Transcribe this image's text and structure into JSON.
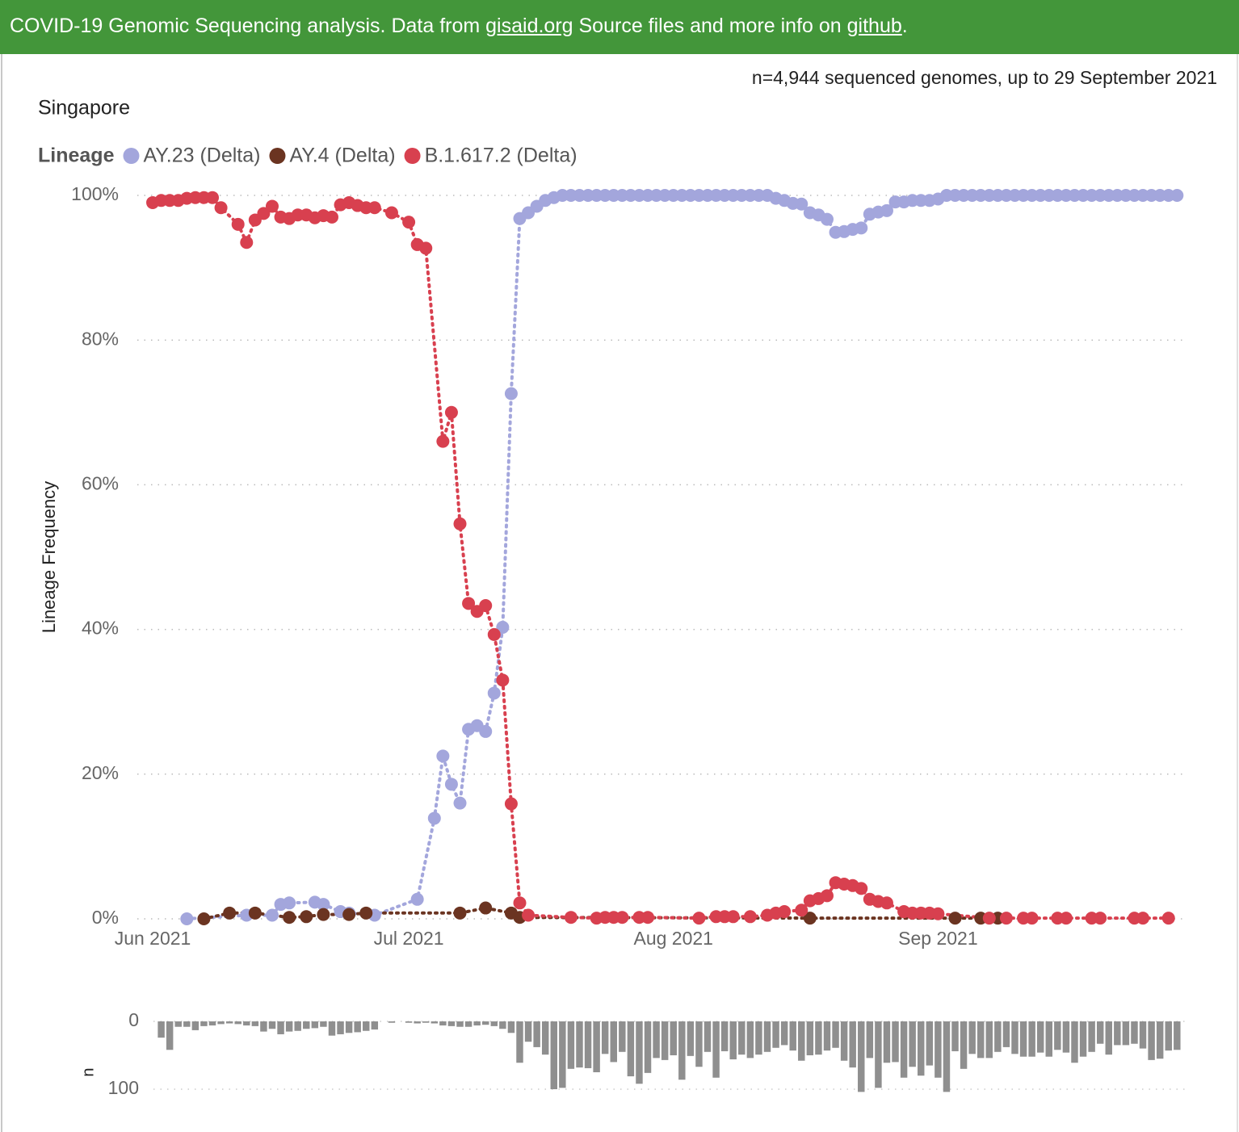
{
  "header": {
    "lead": "COVID-19 Genomic Sequencing analysis. Data from ",
    "link_data": "gisaid.org",
    "middle": " Source files and more info on ",
    "link_source": "github",
    "tail": "."
  },
  "summary": "n=4,944 sequenced genomes, up to 29 September 2021",
  "chart_data": [
    {
      "type": "line",
      "title": "Singapore",
      "legend_title": "Lineage",
      "y_label": "Lineage Frequency",
      "xlim": [
        -1.8,
        121.2
      ],
      "xticks": [
        {
          "value": 0,
          "label": "Jun 2021"
        },
        {
          "value": 30,
          "label": "Jul 2021"
        },
        {
          "value": 61,
          "label": "Aug 2021"
        },
        {
          "value": 92,
          "label": "Sep 2021"
        }
      ],
      "ylim": [
        0,
        100
      ],
      "yticks": [
        {
          "value": 0,
          "label": "0%"
        },
        {
          "value": 20,
          "label": "20%"
        },
        {
          "value": 40,
          "label": "40%"
        },
        {
          "value": 60,
          "label": "60%"
        },
        {
          "value": 80,
          "label": "80%"
        },
        {
          "value": 100,
          "label": "100%"
        }
      ],
      "grid": true,
      "line_style": "dotted",
      "series": [
        {
          "name": "AY.23 (Delta)",
          "color": "#a3a6dc",
          "x": [
            4,
            11,
            14,
            15,
            16,
            19,
            20,
            22,
            23,
            26,
            31,
            33,
            34,
            35,
            36,
            37,
            38,
            39,
            40,
            41,
            42,
            43,
            44,
            45,
            46,
            47,
            48,
            49,
            50,
            51,
            52,
            53,
            54,
            55,
            56,
            57,
            58,
            59,
            60,
            61,
            62,
            63,
            64,
            65,
            66,
            67,
            68,
            69,
            70,
            71,
            72,
            73,
            74,
            75,
            76,
            77,
            78,
            79,
            80,
            81,
            82,
            83,
            84,
            85,
            86,
            87,
            88,
            89,
            90,
            91,
            92,
            93,
            94,
            95,
            96,
            97,
            98,
            99,
            100,
            101,
            102,
            103,
            104,
            105,
            106,
            107,
            108,
            109,
            110,
            111,
            112,
            113,
            114,
            115,
            116,
            117,
            118,
            119,
            120
          ],
          "values": [
            0,
            0.5,
            0.5,
            2,
            2.2,
            2.3,
            2,
            1,
            0.8,
            0.5,
            2.7,
            13.9,
            22.5,
            18.6,
            16,
            26.2,
            26.7,
            25.9,
            31.2,
            40.3,
            72.6,
            96.8,
            97.6,
            98.5,
            99.3,
            99.7,
            100,
            100,
            100,
            100,
            100,
            100,
            100,
            100,
            100,
            100,
            100,
            100,
            100,
            100,
            100,
            100,
            100,
            100,
            100,
            100,
            100,
            100,
            100,
            100,
            100,
            99.6,
            99.3,
            98.9,
            98.8,
            97.6,
            97.3,
            96.7,
            94.9,
            95,
            95.3,
            95.5,
            97.4,
            97.7,
            97.9,
            99.1,
            99.1,
            99.3,
            99.3,
            99.3,
            99.5,
            100,
            100,
            100,
            100,
            100,
            100,
            100,
            100,
            100,
            100,
            100,
            100,
            100,
            100,
            100,
            100,
            100,
            100,
            100,
            100,
            100,
            100,
            100,
            100,
            100,
            100,
            100,
            100
          ]
        },
        {
          "name": "AY.4 (Delta)",
          "color": "#6b3421",
          "x": [
            6,
            9,
            12,
            16,
            18,
            20,
            23,
            25,
            36,
            39,
            42,
            43,
            77,
            94,
            97,
            99
          ],
          "values": [
            0,
            0.8,
            0.8,
            0.2,
            0.3,
            0.6,
            0.6,
            0.8,
            0.8,
            1.5,
            0.8,
            0.2,
            0.1,
            0.1,
            0.1,
            0.1
          ]
        },
        {
          "name": "B.1.617.2 (Delta)",
          "color": "#d8404f",
          "x": [
            0,
            1,
            2,
            3,
            4,
            5,
            6,
            7,
            8,
            10,
            11,
            12,
            13,
            14,
            15,
            16,
            17,
            18,
            19,
            20,
            21,
            22,
            23,
            24,
            25,
            26,
            28,
            30,
            31,
            32,
            34,
            35,
            36,
            37,
            38,
            39,
            40,
            41,
            42,
            43,
            44,
            49,
            52,
            53,
            54,
            55,
            57,
            58,
            64,
            66,
            67,
            68,
            70,
            72,
            73,
            74,
            76,
            77,
            78,
            79,
            80,
            81,
            82,
            83,
            84,
            85,
            86,
            88,
            89,
            90,
            91,
            92,
            98,
            100,
            102,
            103,
            106,
            107,
            110,
            111,
            115,
            116,
            119
          ],
          "values": [
            99,
            99.3,
            99.3,
            99.3,
            99.6,
            99.7,
            99.7,
            99.7,
            98.3,
            96,
            93.5,
            96.6,
            97.5,
            98.5,
            97,
            96.8,
            97.3,
            97.3,
            96.9,
            97.2,
            97,
            98.7,
            99,
            98.6,
            98.3,
            98.3,
            97.6,
            96.3,
            93.2,
            92.7,
            66,
            70,
            54.6,
            43.6,
            42.5,
            43.3,
            39.3,
            33,
            15.9,
            2.2,
            0.5,
            0.2,
            0.1,
            0.2,
            0.2,
            0.2,
            0.2,
            0.2,
            0.1,
            0.3,
            0.3,
            0.3,
            0.3,
            0.5,
            0.8,
            1,
            1.2,
            2.5,
            2.8,
            3.2,
            5,
            4.8,
            4.6,
            4.2,
            2.7,
            2.4,
            2.2,
            1,
            0.8,
            0.8,
            0.8,
            0.7,
            0.1,
            0.1,
            0.1,
            0.1,
            0.1,
            0.1,
            0.1,
            0.1,
            0.1,
            0.1,
            0.1
          ]
        }
      ]
    },
    {
      "type": "bar",
      "y_label": "n",
      "color": "#8f8f8f",
      "y_inverted": true,
      "grid": true,
      "xlim": [
        -1.8,
        121.2
      ],
      "ylim": [
        0,
        110
      ],
      "yticks": [
        0,
        100
      ],
      "x": [
        1,
        2,
        3,
        4,
        5,
        6,
        7,
        8,
        9,
        10,
        11,
        12,
        13,
        14,
        15,
        16,
        17,
        18,
        19,
        20,
        21,
        22,
        23,
        24,
        25,
        26,
        28,
        30,
        31,
        32,
        33,
        34,
        35,
        36,
        37,
        38,
        39,
        40,
        41,
        42,
        43,
        44,
        45,
        46,
        47,
        48,
        49,
        50,
        51,
        52,
        53,
        54,
        55,
        56,
        57,
        58,
        59,
        60,
        61,
        62,
        63,
        64,
        65,
        66,
        67,
        68,
        69,
        70,
        71,
        72,
        73,
        74,
        75,
        76,
        77,
        78,
        79,
        80,
        81,
        82,
        83,
        84,
        85,
        86,
        87,
        88,
        89,
        90,
        91,
        92,
        93,
        94,
        95,
        96,
        97,
        98,
        99,
        100,
        101,
        102,
        103,
        104,
        105,
        106,
        107,
        108,
        109,
        110,
        111,
        112,
        113,
        114,
        115,
        116,
        117,
        118,
        119,
        120
      ],
      "values": [
        24,
        42,
        8,
        8,
        13,
        7,
        6,
        4,
        3,
        4,
        6,
        7,
        15,
        11,
        19,
        15,
        14,
        11,
        10,
        8,
        21,
        19,
        17,
        16,
        14,
        12,
        2,
        2,
        3,
        2,
        3,
        6,
        7,
        8,
        8,
        6,
        5,
        7,
        11,
        17,
        61,
        30,
        38,
        49,
        100,
        98,
        70,
        68,
        69,
        75,
        48,
        60,
        45,
        81,
        92,
        76,
        54,
        57,
        50,
        86,
        51,
        67,
        45,
        83,
        44,
        56,
        49,
        54,
        49,
        45,
        39,
        35,
        43,
        58,
        50,
        49,
        43,
        39,
        58,
        68,
        104,
        54,
        98,
        61,
        60,
        83,
        67,
        80,
        65,
        83,
        104,
        44,
        70,
        48,
        54,
        54,
        45,
        38,
        48,
        52,
        52,
        46,
        52,
        42,
        46,
        61,
        52,
        45,
        33,
        49,
        35,
        35,
        33,
        40,
        57,
        55,
        43,
        42
      ]
    }
  ]
}
